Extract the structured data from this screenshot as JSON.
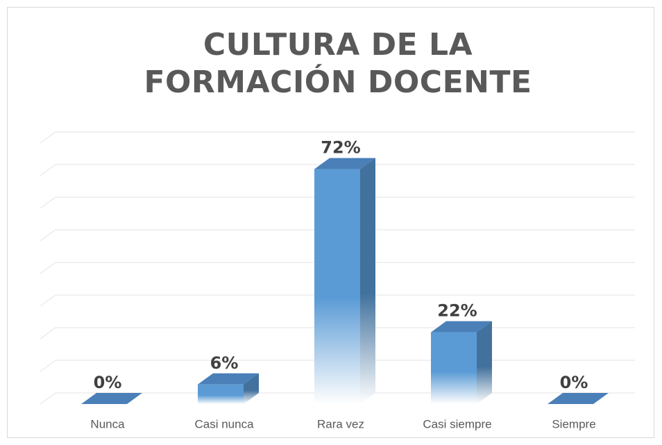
{
  "chart_data": {
    "type": "bar3d",
    "title": "CULTURA DE LA FORMACIÓN DOCENTE",
    "categories": [
      "Nunca",
      "Casi nunca",
      "Rara vez",
      "Casi siempre",
      "Siempre"
    ],
    "values": [
      0,
      6,
      72,
      22,
      0
    ],
    "value_labels": [
      "0%",
      "6%",
      "72%",
      "22%",
      "0%"
    ],
    "color": "#5b9bd5",
    "ylim": [
      0,
      80
    ],
    "yticks": [
      0,
      10,
      20,
      30,
      40,
      50,
      60,
      70,
      80
    ],
    "grid": true
  }
}
